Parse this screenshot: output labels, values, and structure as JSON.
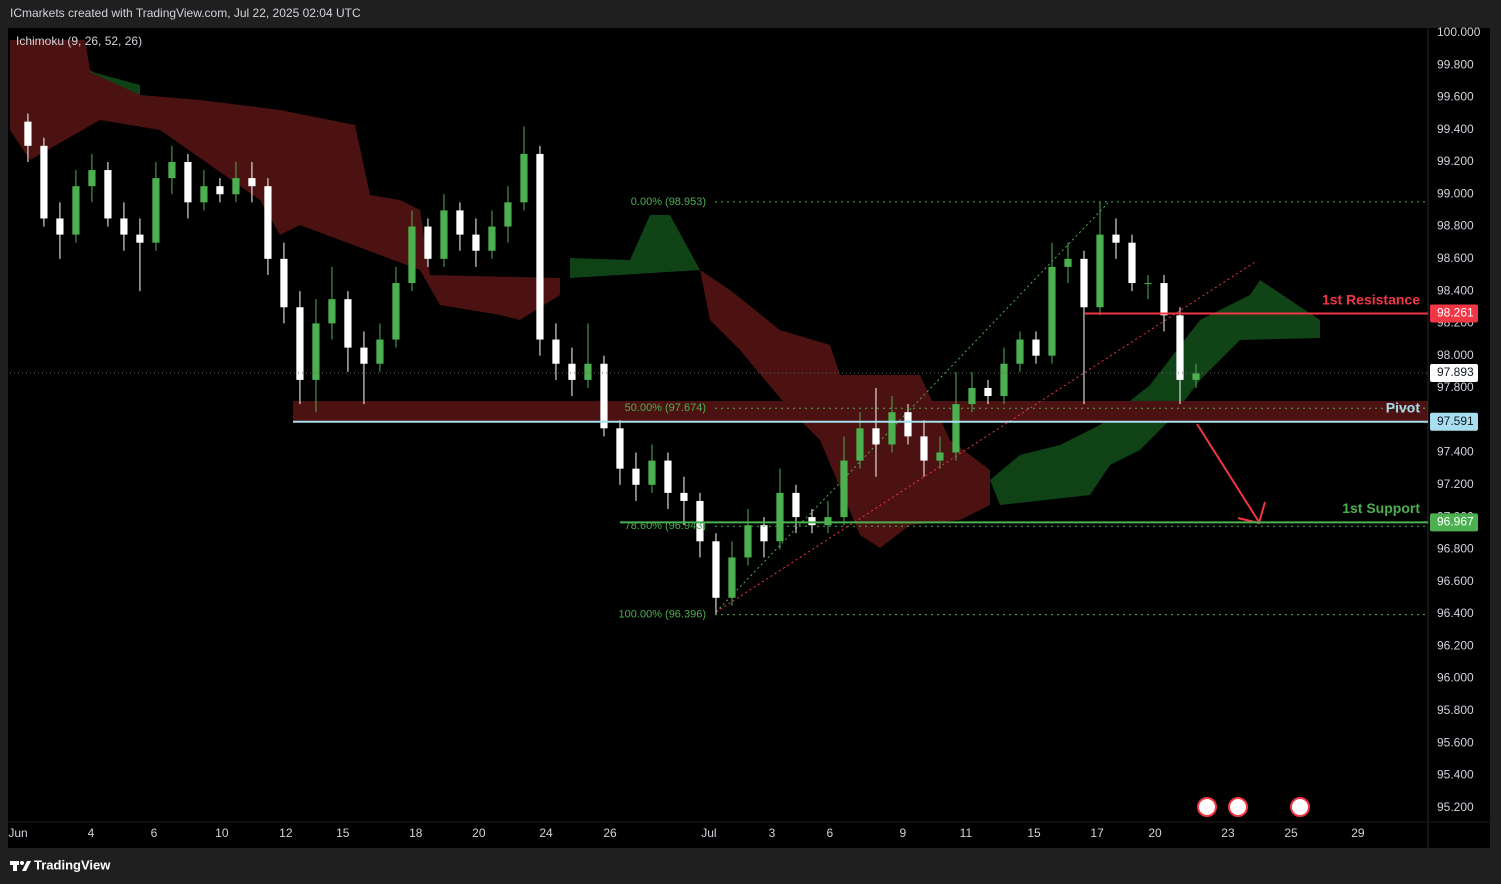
{
  "chart_data": {
    "type": "candlestick",
    "title": "ICmarkets created with TradingView.com, Jul 22, 2025 02:04 UTC",
    "indicator": "Ichimoku (9, 26, 52, 26)",
    "brand": "TradingView",
    "up_color": "#4caf50",
    "down_color": "#ffffff",
    "grid": false,
    "xlim": [
      -0.56,
      43.75
    ],
    "ylim": [
      94.95,
      100.03
    ],
    "xticks": [
      {
        "value": -0.31,
        "label": "Jun"
      },
      {
        "value": 1.97,
        "label": "4"
      },
      {
        "value": 3.94,
        "label": "6"
      },
      {
        "value": 6.06,
        "label": "10"
      },
      {
        "value": 8.06,
        "label": "12"
      },
      {
        "value": 9.84,
        "label": "15"
      },
      {
        "value": 12.12,
        "label": "18"
      },
      {
        "value": 14.09,
        "label": "20"
      },
      {
        "value": 16.19,
        "label": "24"
      },
      {
        "value": 18.19,
        "label": "26"
      },
      {
        "value": 21.28,
        "label": "Jul"
      },
      {
        "value": 23.25,
        "label": "3"
      },
      {
        "value": 25.06,
        "label": "6"
      },
      {
        "value": 27.34,
        "label": "9"
      },
      {
        "value": 29.31,
        "label": "11"
      },
      {
        "value": 31.44,
        "label": "15"
      },
      {
        "value": 33.41,
        "label": "17"
      },
      {
        "value": 35.22,
        "label": "20"
      },
      {
        "value": 37.5,
        "label": "23"
      },
      {
        "value": 39.47,
        "label": "25"
      },
      {
        "value": 41.56,
        "label": "29"
      }
    ],
    "yticks": [
      {
        "value": 95.2,
        "label": "95.200"
      },
      {
        "value": 95.4,
        "label": "95.400"
      },
      {
        "value": 95.6,
        "label": "95.600"
      },
      {
        "value": 95.8,
        "label": "95.800"
      },
      {
        "value": 96.0,
        "label": "96.000"
      },
      {
        "value": 96.2,
        "label": "96.200"
      },
      {
        "value": 96.4,
        "label": "96.400"
      },
      {
        "value": 96.6,
        "label": "96.600"
      },
      {
        "value": 96.8,
        "label": "96.800"
      },
      {
        "value": 97.0,
        "label": "97.000"
      },
      {
        "value": 97.2,
        "label": "97.200"
      },
      {
        "value": 97.4,
        "label": "97.400"
      },
      {
        "value": 97.6,
        "label": "97.600"
      },
      {
        "value": 97.8,
        "label": "97.800"
      },
      {
        "value": 98.0,
        "label": "98.000"
      },
      {
        "value": 98.2,
        "label": "98.200"
      },
      {
        "value": 98.4,
        "label": "98.400"
      },
      {
        "value": 98.6,
        "label": "98.600"
      },
      {
        "value": 98.8,
        "label": "98.800"
      },
      {
        "value": 99.0,
        "label": "99.000"
      },
      {
        "value": 99.2,
        "label": "99.200"
      },
      {
        "value": 99.4,
        "label": "99.400"
      },
      {
        "value": 99.6,
        "label": "99.600"
      },
      {
        "value": 99.8,
        "label": "99.800"
      },
      {
        "value": 100.0,
        "label": "100.000"
      }
    ],
    "x": [
      0,
      0.5,
      1,
      1.5,
      2,
      2.5,
      3,
      3.5,
      4,
      4.5,
      5,
      5.5,
      6,
      6.5,
      7,
      7.5,
      8,
      8.5,
      9,
      9.5,
      10,
      10.5,
      11,
      11.5,
      12,
      12.5,
      13,
      13.5,
      14,
      14.5,
      15,
      15.5,
      16,
      16.5,
      17,
      17.5,
      18,
      18.5,
      19,
      19.5,
      20,
      20.5,
      21,
      21.5,
      22,
      22.5,
      23,
      23.5,
      24,
      24.5,
      25,
      25.5,
      26,
      26.5,
      27,
      27.5,
      28,
      28.5,
      29,
      29.5,
      30,
      30.5,
      31,
      31.5,
      32,
      32.5,
      33,
      33.5,
      34,
      34.5,
      35,
      35.5,
      36,
      36.5
    ],
    "open": [
      99.45,
      99.3,
      98.85,
      98.75,
      99.05,
      99.15,
      98.85,
      98.75,
      98.7,
      99.1,
      99.2,
      98.95,
      99.05,
      99.0,
      99.1,
      99.05,
      98.6,
      98.3,
      97.85,
      98.2,
      98.35,
      98.05,
      97.95,
      98.1,
      98.45,
      98.8,
      98.6,
      98.9,
      98.75,
      98.65,
      98.8,
      98.95,
      99.25,
      98.1,
      97.95,
      97.85,
      97.95,
      97.55,
      97.3,
      97.2,
      97.35,
      97.15,
      97.1,
      96.85,
      96.5,
      96.75,
      96.95,
      96.85,
      97.15,
      97.0,
      96.95,
      97.0,
      97.35,
      97.55,
      97.45,
      97.65,
      97.5,
      97.35,
      97.4,
      97.7,
      97.8,
      97.75,
      97.95,
      98.1,
      98.0,
      98.55,
      98.6,
      98.3,
      98.75,
      98.7,
      98.45,
      98.45,
      98.25,
      97.85
    ],
    "high": [
      99.5,
      99.35,
      98.95,
      99.15,
      99.25,
      99.2,
      98.95,
      98.85,
      99.2,
      99.3,
      99.25,
      99.15,
      99.1,
      99.2,
      99.2,
      99.1,
      98.7,
      98.4,
      98.35,
      98.55,
      98.4,
      98.15,
      98.2,
      98.55,
      98.9,
      98.85,
      99.0,
      98.95,
      98.85,
      98.9,
      99.05,
      99.42,
      99.3,
      98.2,
      98.05,
      98.2,
      98.0,
      97.6,
      97.4,
      97.45,
      97.4,
      97.25,
      97.15,
      96.9,
      96.85,
      97.05,
      97.0,
      97.3,
      97.2,
      97.05,
      97.1,
      97.5,
      97.65,
      97.8,
      97.75,
      97.7,
      97.6,
      97.5,
      97.9,
      97.9,
      97.85,
      98.05,
      98.15,
      98.15,
      98.7,
      98.7,
      98.65,
      98.95,
      98.85,
      98.75,
      98.5,
      98.5,
      98.3,
      97.95
    ],
    "low": [
      99.2,
      98.8,
      98.6,
      98.7,
      98.95,
      98.8,
      98.65,
      98.4,
      98.65,
      99.0,
      98.85,
      98.9,
      98.95,
      98.95,
      98.95,
      98.5,
      98.2,
      97.7,
      97.65,
      98.1,
      97.9,
      97.7,
      97.9,
      98.05,
      98.4,
      98.55,
      98.55,
      98.65,
      98.55,
      98.6,
      98.7,
      98.9,
      98.0,
      97.85,
      97.75,
      97.8,
      97.5,
      97.2,
      97.1,
      97.15,
      97.05,
      96.95,
      96.75,
      96.4,
      96.45,
      96.7,
      96.75,
      96.8,
      96.9,
      96.9,
      96.9,
      96.95,
      97.3,
      97.25,
      97.4,
      97.45,
      97.25,
      97.3,
      97.35,
      97.65,
      97.7,
      97.7,
      97.9,
      97.95,
      97.95,
      98.45,
      97.7,
      98.25,
      98.6,
      98.4,
      98.35,
      98.15,
      97.7,
      97.8
    ],
    "close": [
      99.3,
      98.85,
      98.75,
      99.05,
      99.15,
      98.85,
      98.75,
      98.7,
      99.1,
      99.2,
      98.95,
      99.05,
      99.0,
      99.1,
      99.05,
      98.6,
      98.3,
      97.85,
      98.2,
      98.35,
      98.05,
      97.95,
      98.1,
      98.45,
      98.8,
      98.6,
      98.9,
      98.75,
      98.65,
      98.8,
      98.95,
      99.25,
      98.1,
      97.95,
      97.85,
      97.95,
      97.55,
      97.3,
      97.2,
      97.35,
      97.15,
      97.1,
      96.85,
      96.5,
      96.75,
      96.95,
      96.85,
      97.15,
      97.0,
      96.95,
      97.0,
      97.35,
      97.55,
      97.45,
      97.65,
      97.5,
      97.35,
      97.4,
      97.7,
      97.8,
      97.75,
      97.95,
      98.1,
      98.0,
      98.55,
      98.6,
      98.3,
      98.75,
      98.7,
      98.45,
      98.45,
      98.25,
      97.85,
      97.89
    ],
    "current_price": 97.893,
    "levels": [
      {
        "label": "1st Resistance",
        "value": 98.261,
        "color": "#f23645"
      },
      {
        "label": "Pivot",
        "value": 97.591,
        "color": "#a7dff0"
      },
      {
        "label": "1st Support",
        "value": 96.967,
        "color": "#4caf50"
      }
    ],
    "fib_color": "#4caf50",
    "fib": [
      {
        "label": "0.00% (98.953)",
        "value": 98.953
      },
      {
        "label": "50.00% (97.674)",
        "value": 97.674
      },
      {
        "label": "78.60% (96.943)",
        "value": 96.943
      },
      {
        "label": "100.00% (96.396)",
        "value": 96.396
      }
    ]
  }
}
